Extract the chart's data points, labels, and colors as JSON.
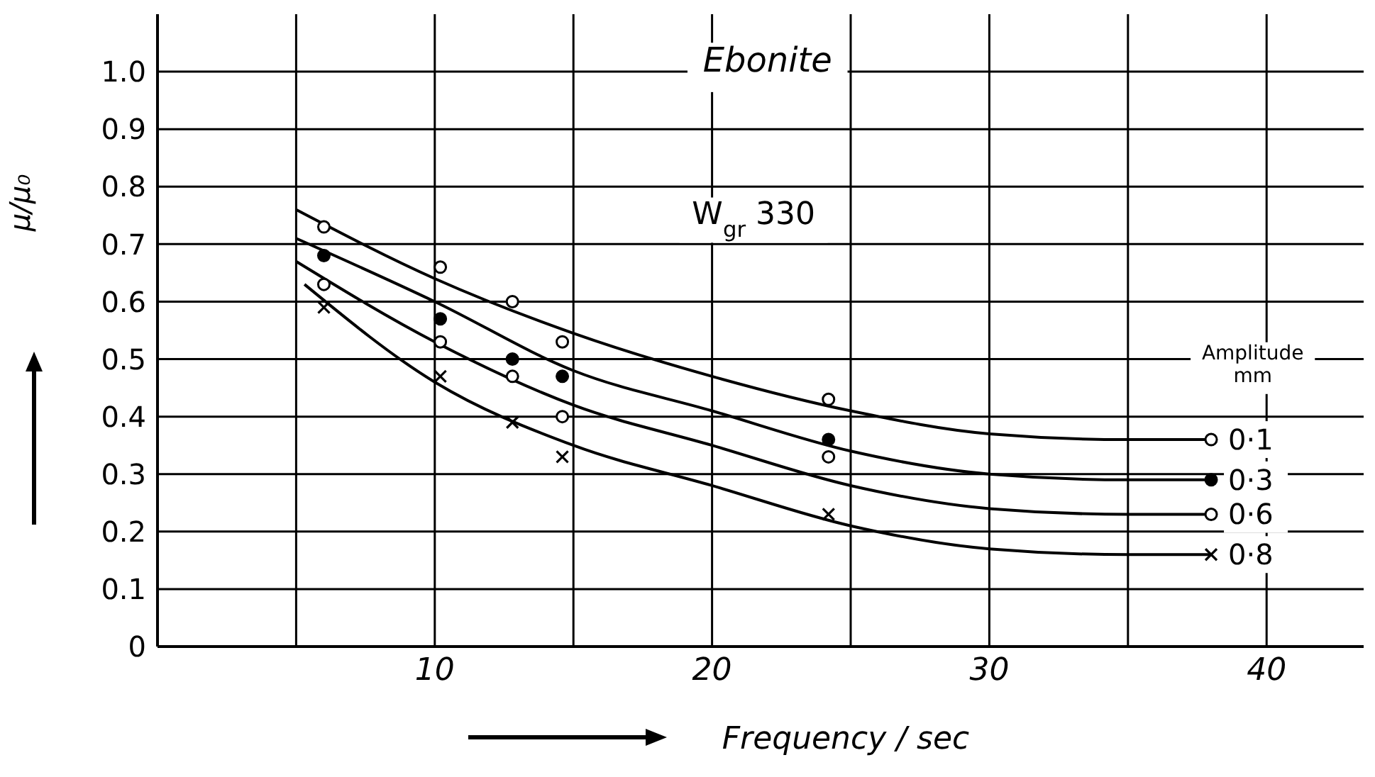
{
  "chart_data": {
    "type": "scatter",
    "xlabel": "Frequency / sec",
    "ylabel": "μ/μ₀",
    "annotations": [
      "Ebonite",
      "W$_{gr}$ 330",
      "Amplitude",
      "mm"
    ],
    "xlim": [
      0,
      43.5
    ],
    "xticks": [
      {
        "value": 5,
        "label": null
      },
      10,
      {
        "value": 15,
        "label": null
      },
      20,
      {
        "value": 25,
        "label": null
      },
      30,
      {
        "value": 35,
        "label": null
      },
      40
    ],
    "ylim": [
      0,
      1.1
    ],
    "yticks": [
      0,
      0.1,
      0.2,
      0.3,
      0.4,
      0.5,
      0.6,
      0.7,
      0.8,
      0.9,
      {
        "value": 1,
        "label": "1.0"
      }
    ],
    "grid": true,
    "series": [
      {
        "marker": "circle",
        "color": "#ffffff",
        "x": [
          6.0,
          10.2,
          12.8,
          14.6,
          24.2
        ],
        "values": [
          0.73,
          0.66,
          0.6,
          0.53,
          0.43
        ]
      },
      {
        "marker": "circle",
        "color": "#000000",
        "x": [
          6.0,
          10.2,
          12.8,
          14.6,
          24.2
        ],
        "values": [
          0.68,
          0.57,
          0.5,
          0.47,
          0.36
        ]
      },
      {
        "marker": "circle",
        "color": "#ffffff",
        "x": [
          6.0,
          10.2,
          12.8,
          14.6,
          24.2
        ],
        "values": [
          0.63,
          0.53,
          0.47,
          0.4,
          0.33
        ]
      },
      {
        "marker": "cross",
        "color": "#000000",
        "x": [
          6.0,
          10.2,
          12.8,
          14.6,
          24.2
        ],
        "values": [
          0.59,
          0.47,
          0.39,
          0.33,
          0.23
        ]
      },
      {
        "type": "line",
        "name": "0·1",
        "marker": "none",
        "color": "#000000",
        "x": [
          5,
          10,
          15,
          20,
          25,
          30,
          35,
          38
        ],
        "values": [
          0.76,
          0.64,
          0.545,
          0.47,
          0.41,
          0.37,
          0.36,
          0.36
        ]
      },
      {
        "type": "line",
        "name": "0·3",
        "marker": "none",
        "color": "#000000",
        "x": [
          5,
          10,
          15,
          20,
          25,
          30,
          35,
          38
        ],
        "values": [
          0.71,
          0.6,
          0.48,
          0.41,
          0.34,
          0.3,
          0.29,
          0.29
        ]
      },
      {
        "type": "line",
        "name": "0·6",
        "marker": "none",
        "color": "#000000",
        "x": [
          5,
          10,
          15,
          20,
          25,
          30,
          35,
          38
        ],
        "values": [
          0.67,
          0.53,
          0.42,
          0.35,
          0.28,
          0.24,
          0.23,
          0.23
        ]
      },
      {
        "type": "line",
        "name": "0·8",
        "marker": "none",
        "color": "#000000",
        "x": [
          5.3,
          10,
          15,
          20,
          25,
          30,
          35,
          38
        ],
        "values": [
          0.63,
          0.46,
          0.35,
          0.28,
          0.21,
          0.17,
          0.16,
          0.16
        ]
      }
    ]
  }
}
